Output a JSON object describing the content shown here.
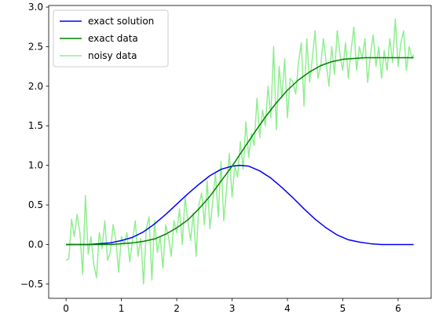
{
  "chart_data": {
    "type": "line",
    "title": "",
    "xlabel": "",
    "ylabel": "",
    "xlim": [
      -0.314,
      6.597
    ],
    "ylim": [
      -0.68,
      3.02
    ],
    "x_ticks": [
      0,
      1,
      2,
      3,
      4,
      5,
      6
    ],
    "x_tick_labels": [
      "0",
      "1",
      "2",
      "3",
      "4",
      "5",
      "6"
    ],
    "y_ticks": [
      -0.5,
      0.0,
      0.5,
      1.0,
      1.5,
      2.0,
      2.5,
      3.0
    ],
    "y_tick_labels": [
      "−0.5",
      "0.0",
      "0.5",
      "1.0",
      "1.5",
      "2.0",
      "2.5",
      "3.0"
    ],
    "grid": false,
    "legend_position": "top-left",
    "series": [
      {
        "name": "exact solution",
        "color": "#0000ff",
        "x": [
          0.0,
          0.2,
          0.4,
          0.6,
          0.8,
          1.0,
          1.2,
          1.4,
          1.6,
          1.8,
          2.0,
          2.2,
          2.4,
          2.6,
          2.8,
          3.0,
          3.14,
          3.3,
          3.5,
          3.7,
          3.9,
          4.1,
          4.3,
          4.5,
          4.7,
          4.9,
          5.1,
          5.3,
          5.5,
          5.7,
          5.9,
          6.1,
          6.28
        ],
        "y": [
          0.0,
          0.0,
          0.0,
          0.01,
          0.02,
          0.05,
          0.09,
          0.16,
          0.26,
          0.38,
          0.51,
          0.64,
          0.76,
          0.87,
          0.95,
          0.99,
          1.0,
          0.99,
          0.93,
          0.84,
          0.72,
          0.59,
          0.45,
          0.32,
          0.21,
          0.12,
          0.06,
          0.03,
          0.01,
          0.0,
          0.0,
          0.0,
          0.0
        ]
      },
      {
        "name": "exact data",
        "color": "#008000",
        "x": [
          0.0,
          0.2,
          0.4,
          0.6,
          0.8,
          1.0,
          1.2,
          1.4,
          1.6,
          1.8,
          2.0,
          2.2,
          2.4,
          2.6,
          2.8,
          3.0,
          3.2,
          3.4,
          3.6,
          3.8,
          4.0,
          4.2,
          4.4,
          4.6,
          4.8,
          5.0,
          5.2,
          5.4,
          5.6,
          5.8,
          6.0,
          6.28
        ],
        "y": [
          0.0,
          0.0,
          0.0,
          0.0,
          0.0,
          0.01,
          0.02,
          0.04,
          0.07,
          0.13,
          0.21,
          0.31,
          0.45,
          0.61,
          0.8,
          0.99,
          1.2,
          1.41,
          1.61,
          1.79,
          1.95,
          2.08,
          2.18,
          2.26,
          2.31,
          2.34,
          2.35,
          2.36,
          2.36,
          2.36,
          2.36,
          2.36
        ]
      },
      {
        "name": "noisy data",
        "color": "#90ee90",
        "x": [
          0.0,
          0.05,
          0.1,
          0.15,
          0.2,
          0.25,
          0.3,
          0.35,
          0.4,
          0.45,
          0.5,
          0.55,
          0.6,
          0.65,
          0.7,
          0.75,
          0.8,
          0.85,
          0.9,
          0.95,
          1.0,
          1.05,
          1.1,
          1.15,
          1.2,
          1.25,
          1.3,
          1.35,
          1.4,
          1.45,
          1.5,
          1.55,
          1.6,
          1.65,
          1.7,
          1.75,
          1.8,
          1.85,
          1.9,
          1.95,
          2.0,
          2.05,
          2.1,
          2.15,
          2.2,
          2.25,
          2.3,
          2.35,
          2.4,
          2.45,
          2.5,
          2.55,
          2.6,
          2.65,
          2.7,
          2.75,
          2.8,
          2.85,
          2.9,
          2.95,
          3.0,
          3.05,
          3.1,
          3.15,
          3.2,
          3.25,
          3.3,
          3.35,
          3.4,
          3.45,
          3.5,
          3.55,
          3.6,
          3.65,
          3.7,
          3.75,
          3.8,
          3.85,
          3.9,
          3.95,
          4.0,
          4.05,
          4.1,
          4.15,
          4.2,
          4.25,
          4.3,
          4.35,
          4.4,
          4.45,
          4.5,
          4.55,
          4.6,
          4.65,
          4.7,
          4.75,
          4.8,
          4.85,
          4.9,
          4.95,
          5.0,
          5.05,
          5.1,
          5.15,
          5.2,
          5.25,
          5.3,
          5.35,
          5.4,
          5.45,
          5.5,
          5.55,
          5.6,
          5.65,
          5.7,
          5.75,
          5.8,
          5.85,
          5.9,
          5.95,
          6.0,
          6.05,
          6.1,
          6.15,
          6.2,
          6.25,
          6.28
        ],
        "y": [
          -0.2,
          -0.18,
          0.32,
          0.1,
          0.38,
          0.15,
          -0.38,
          0.62,
          -0.12,
          0.1,
          -0.25,
          -0.42,
          0.15,
          -0.05,
          0.3,
          -0.2,
          -0.1,
          0.25,
          0.05,
          -0.35,
          0.1,
          0.0,
          0.15,
          -0.22,
          0.05,
          0.3,
          -0.15,
          0.08,
          -0.5,
          0.2,
          0.35,
          -0.45,
          0.3,
          -0.1,
          0.1,
          -0.3,
          0.25,
          0.1,
          -0.15,
          0.3,
          0.15,
          0.45,
          0.0,
          0.6,
          0.3,
          0.05,
          0.4,
          -0.15,
          0.5,
          0.65,
          0.25,
          0.8,
          0.2,
          0.55,
          0.9,
          0.35,
          1.05,
          0.3,
          0.7,
          1.15,
          0.6,
          1.0,
          0.85,
          1.3,
          0.95,
          1.55,
          1.1,
          1.4,
          1.25,
          1.85,
          1.35,
          1.7,
          1.5,
          2.0,
          1.6,
          2.5,
          1.45,
          2.25,
          1.85,
          2.35,
          1.6,
          2.1,
          2.05,
          1.9,
          2.3,
          2.55,
          1.75,
          2.6,
          2.05,
          2.35,
          2.7,
          2.1,
          2.25,
          2.6,
          2.3,
          2.0,
          2.5,
          2.15,
          2.7,
          2.4,
          2.2,
          2.55,
          2.1,
          2.45,
          2.75,
          2.2,
          2.5,
          2.35,
          2.6,
          2.05,
          2.4,
          2.65,
          2.25,
          2.5,
          2.1,
          2.45,
          2.2,
          2.6,
          2.3,
          2.85,
          2.25,
          2.55,
          2.7,
          2.2,
          2.5,
          2.35,
          2.4
        ]
      }
    ]
  }
}
